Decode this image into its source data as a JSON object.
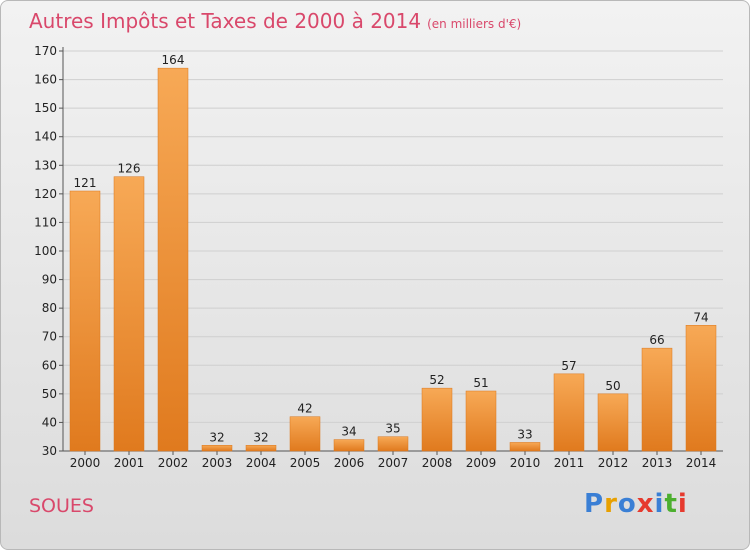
{
  "header": {
    "title": "Autres Impôts et Taxes de 2000 à 2014",
    "subtitle": "(en milliers d'€)"
  },
  "footer": {
    "place": "SOUES",
    "logo": "Proxiti"
  },
  "colors": {
    "title": "#d9486b",
    "bar_light": "#f7a956",
    "bar_dark": "#e07a1e",
    "grid": "#cfcfcf"
  },
  "chart_data": {
    "type": "bar",
    "title": "Autres Impôts et Taxes de 2000 à 2014",
    "subtitle": "(en milliers d'€)",
    "categories": [
      "2000",
      "2001",
      "2002",
      "2003",
      "2004",
      "2005",
      "2006",
      "2007",
      "2008",
      "2009",
      "2010",
      "2011",
      "2012",
      "2013",
      "2014"
    ],
    "values": [
      121,
      126,
      164,
      32,
      32,
      42,
      34,
      35,
      52,
      51,
      33,
      57,
      50,
      66,
      74
    ],
    "ylim": [
      30,
      170
    ],
    "yticks": [
      30,
      40,
      50,
      60,
      70,
      80,
      90,
      100,
      110,
      120,
      130,
      140,
      150,
      160,
      170
    ],
    "grid": true,
    "data_labels": true
  }
}
